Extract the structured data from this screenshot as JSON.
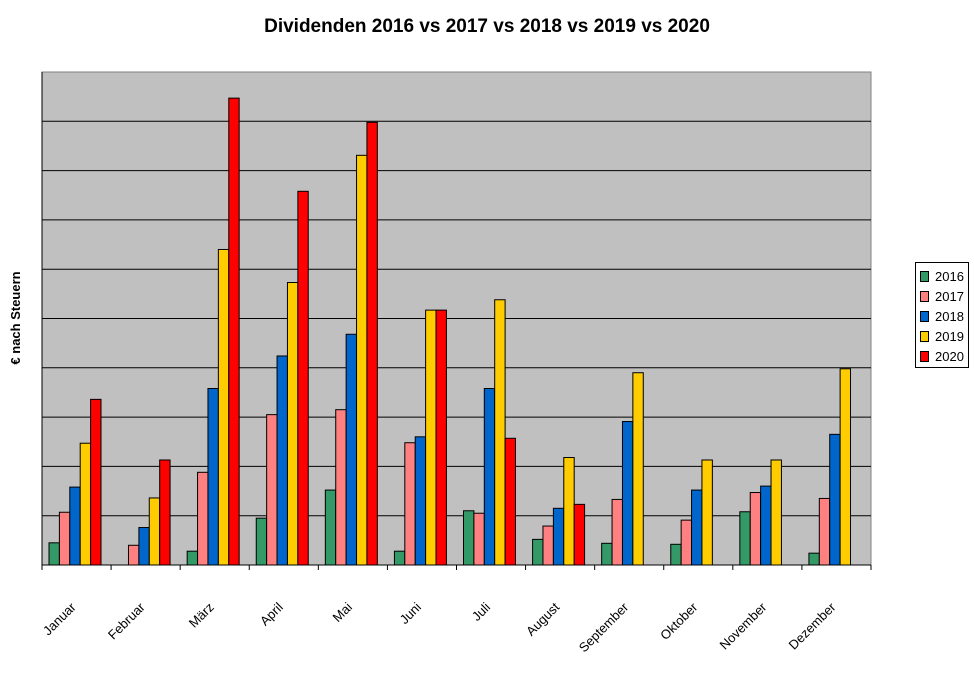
{
  "chart_data": {
    "type": "bar",
    "title": "Dividenden 2016 vs 2017 vs 2018 vs 2019 vs 2020",
    "ylabel": "€ nach Steuern",
    "xlabel": "",
    "ylim": [
      0,
      100
    ],
    "grid": true,
    "legend_position": "right",
    "categories": [
      "Januar",
      "Februar",
      "März",
      "April",
      "Mai",
      "Juni",
      "Juli",
      "August",
      "September",
      "Oktober",
      "November",
      "Dezember"
    ],
    "series": [
      {
        "name": "2016",
        "color": "#339966",
        "values": [
          4.5,
          0,
          2.8,
          9.5,
          15.2,
          2.8,
          11.0,
          5.2,
          4.4,
          4.2,
          10.8,
          2.4
        ]
      },
      {
        "name": "2017",
        "color": "#FF8080",
        "values": [
          10.7,
          4.0,
          18.8,
          30.5,
          31.5,
          24.8,
          10.5,
          7.9,
          13.3,
          9.1,
          14.7,
          13.5
        ]
      },
      {
        "name": "2018",
        "color": "#0066CC",
        "values": [
          15.8,
          7.6,
          35.8,
          42.4,
          46.8,
          26.0,
          35.8,
          11.5,
          29.1,
          15.2,
          16.0,
          26.5
        ]
      },
      {
        "name": "2019",
        "color": "#FFCC00",
        "values": [
          24.7,
          13.6,
          64.0,
          57.3,
          83.1,
          51.7,
          53.8,
          21.8,
          39.0,
          21.3,
          21.3,
          39.8
        ]
      },
      {
        "name": "2020",
        "color": "#FF0000",
        "values": [
          33.6,
          21.3,
          94.7,
          75.8,
          89.8,
          51.7,
          25.7,
          12.3,
          0,
          0,
          0,
          0
        ]
      }
    ]
  }
}
